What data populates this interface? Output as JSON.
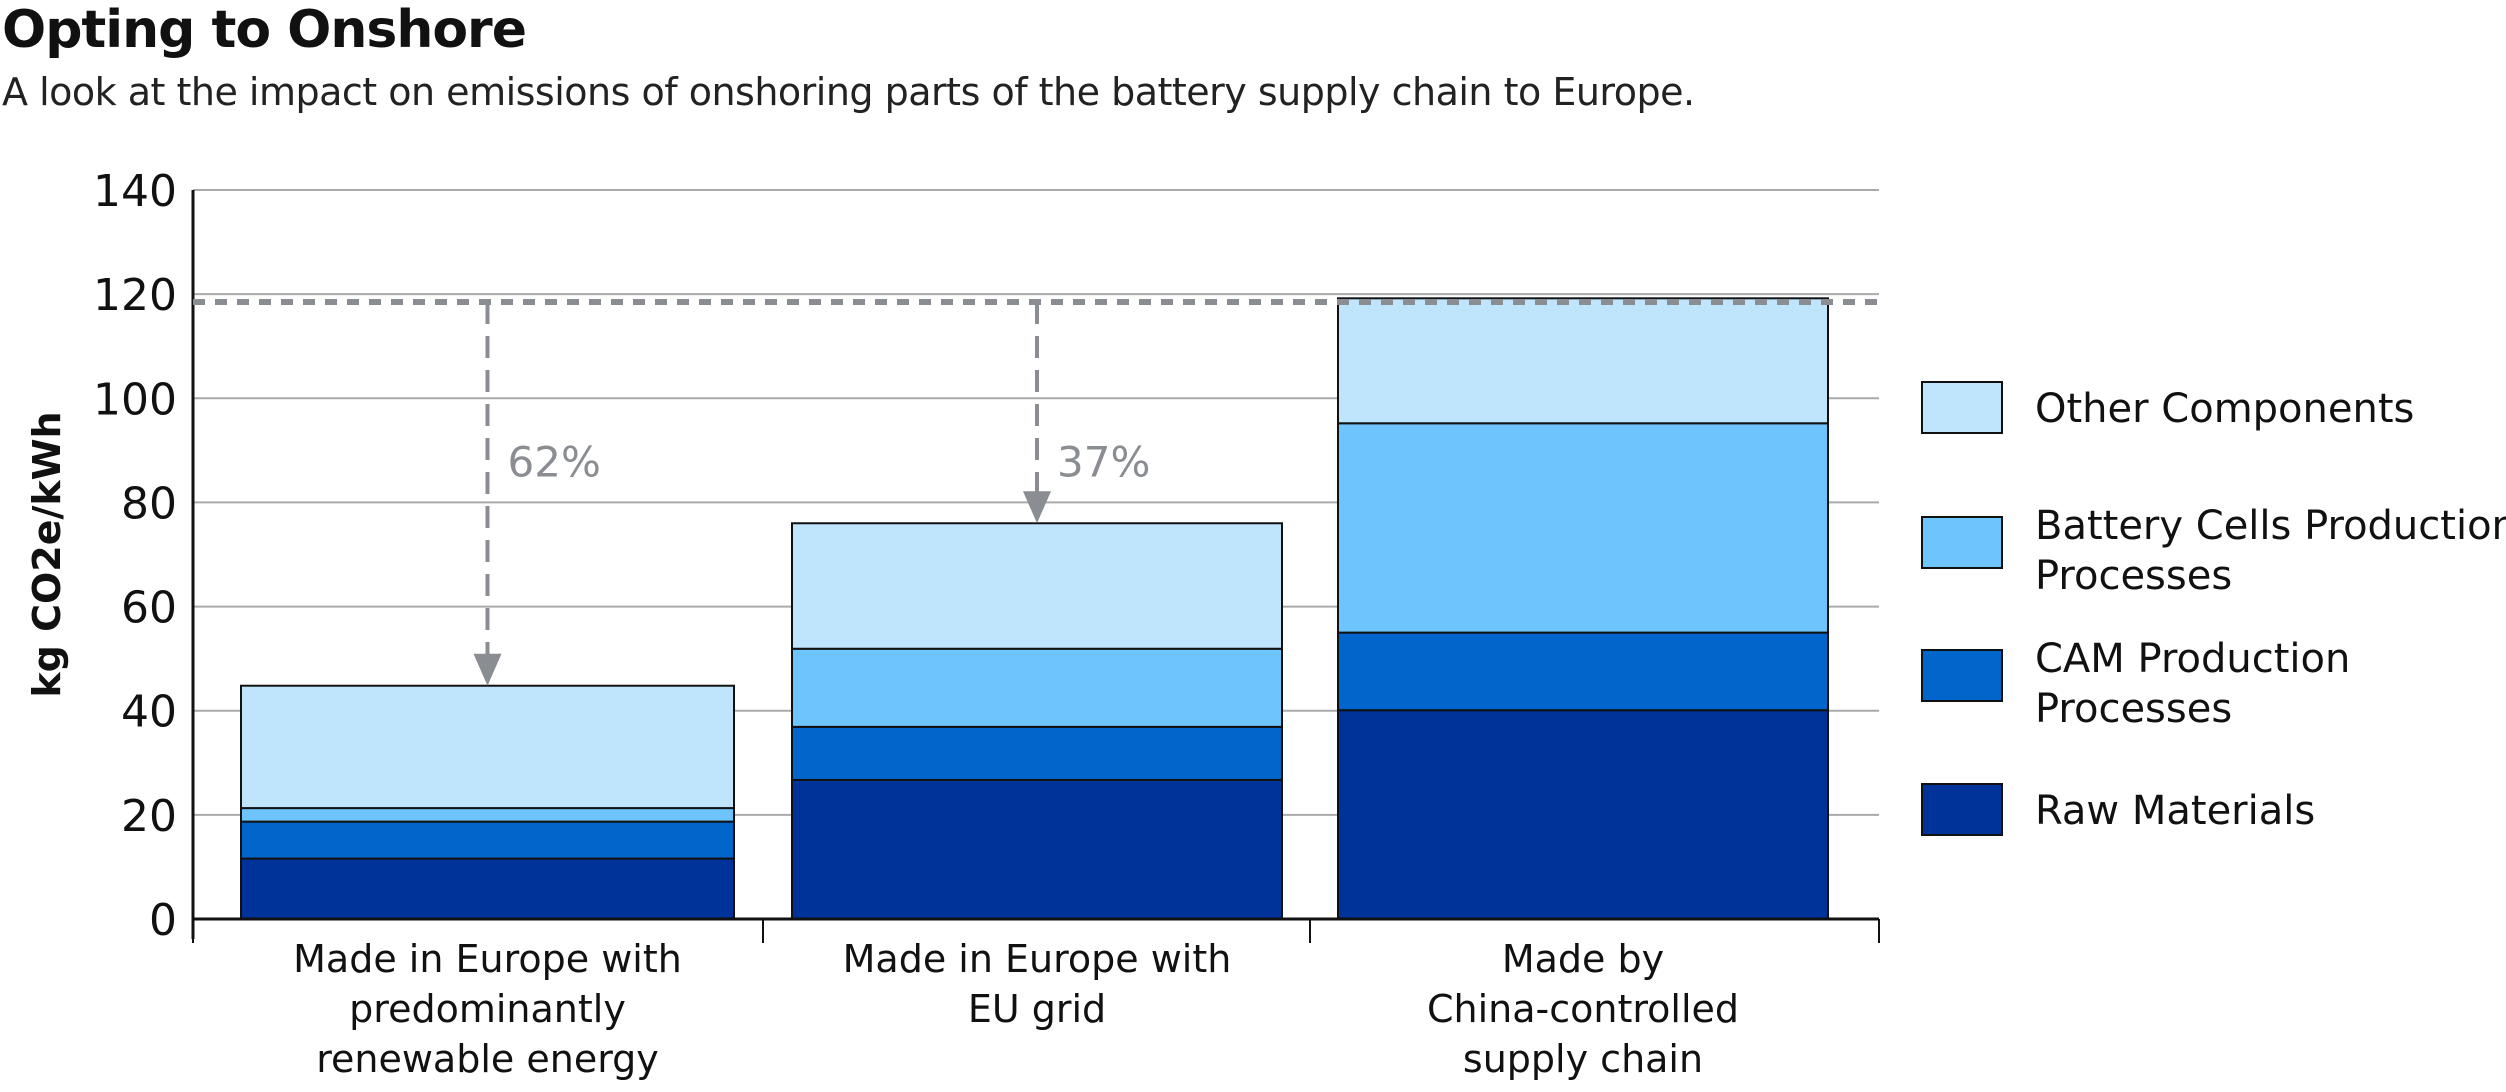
{
  "chart_data": {
    "type": "bar",
    "stacked": true,
    "title": "Opting to Onshore",
    "subtitle": "A look at the impact on emissions of onshoring parts of the battery supply chain to Europe.",
    "ylabel": "kg CO2e/kWh",
    "xlabel": "",
    "ylim": [
      0,
      140
    ],
    "yticks": [
      0,
      20,
      40,
      60,
      80,
      100,
      120,
      140
    ],
    "grid": true,
    "legend_position": "right",
    "categories": [
      [
        "Made in Europe with",
        "predominantly",
        "renewable energy"
      ],
      [
        "Made in Europe with",
        "EU grid"
      ],
      [
        "Made by",
        "China-controlled",
        "supply chain"
      ]
    ],
    "series": [
      {
        "name": "Raw Materials",
        "color": "#003399",
        "values": [
          11.6,
          26.7,
          40.1
        ]
      },
      {
        "name": "CAM Production Processes",
        "legend_lines": [
          "CAM Production",
          "Processes"
        ],
        "color": "#0066cc",
        "values": [
          7.1,
          10.2,
          14.9
        ]
      },
      {
        "name": "Battery Cells Production Processes",
        "legend_lines": [
          "Battery Cells Production",
          "Processes"
        ],
        "color": "#6ec4fc",
        "values": [
          2.6,
          15.0,
          40.2
        ]
      },
      {
        "name": "Other Components",
        "legend_lines": [
          "Other Components"
        ],
        "color": "#bfe5fd",
        "values": [
          23.5,
          24.1,
          24.0
        ]
      }
    ],
    "reference_line": {
      "value": 118.5,
      "style": "dashed",
      "color": "#8a8d91"
    },
    "annotations": [
      {
        "category_index": 0,
        "text": "62%"
      },
      {
        "category_index": 1,
        "text": "37%"
      }
    ]
  }
}
